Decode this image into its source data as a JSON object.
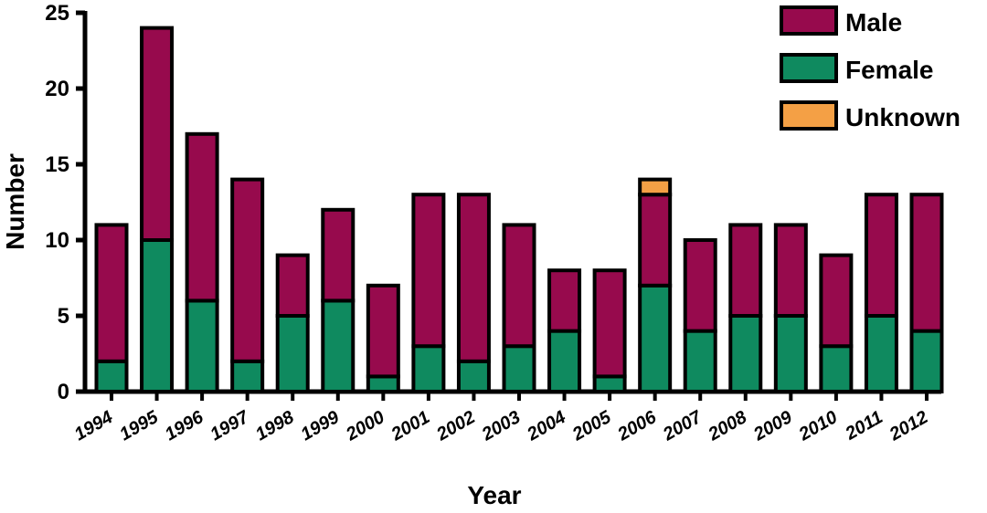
{
  "chart_data": {
    "type": "bar",
    "stacked": true,
    "xlabel": "Year",
    "ylabel": "Number",
    "ylim": [
      0,
      25
    ],
    "yticks": [
      0,
      5,
      10,
      15,
      20,
      25
    ],
    "grid": false,
    "legend_position": "top-right",
    "categories": [
      "1994",
      "1995",
      "1996",
      "1997",
      "1998",
      "1999",
      "2000",
      "2001",
      "2002",
      "2003",
      "2004",
      "2005",
      "2006",
      "2007",
      "2008",
      "2009",
      "2010",
      "2011",
      "2012"
    ],
    "series": [
      {
        "name": "Female",
        "color": "#0f8a5f",
        "values": [
          2,
          10,
          6,
          2,
          5,
          6,
          1,
          3,
          2,
          3,
          4,
          1,
          7,
          4,
          5,
          5,
          3,
          5,
          4
        ]
      },
      {
        "name": "Male",
        "color": "#970a4d",
        "values": [
          9,
          14,
          11,
          12,
          4,
          6,
          6,
          10,
          11,
          8,
          4,
          7,
          6,
          6,
          6,
          6,
          6,
          8,
          9
        ]
      },
      {
        "name": "Unknown",
        "color": "#f4a045",
        "values": [
          0,
          0,
          0,
          0,
          0,
          0,
          0,
          0,
          0,
          0,
          0,
          0,
          1,
          0,
          0,
          0,
          0,
          0,
          0
        ]
      }
    ],
    "legend_order": [
      "Male",
      "Female",
      "Unknown"
    ]
  }
}
